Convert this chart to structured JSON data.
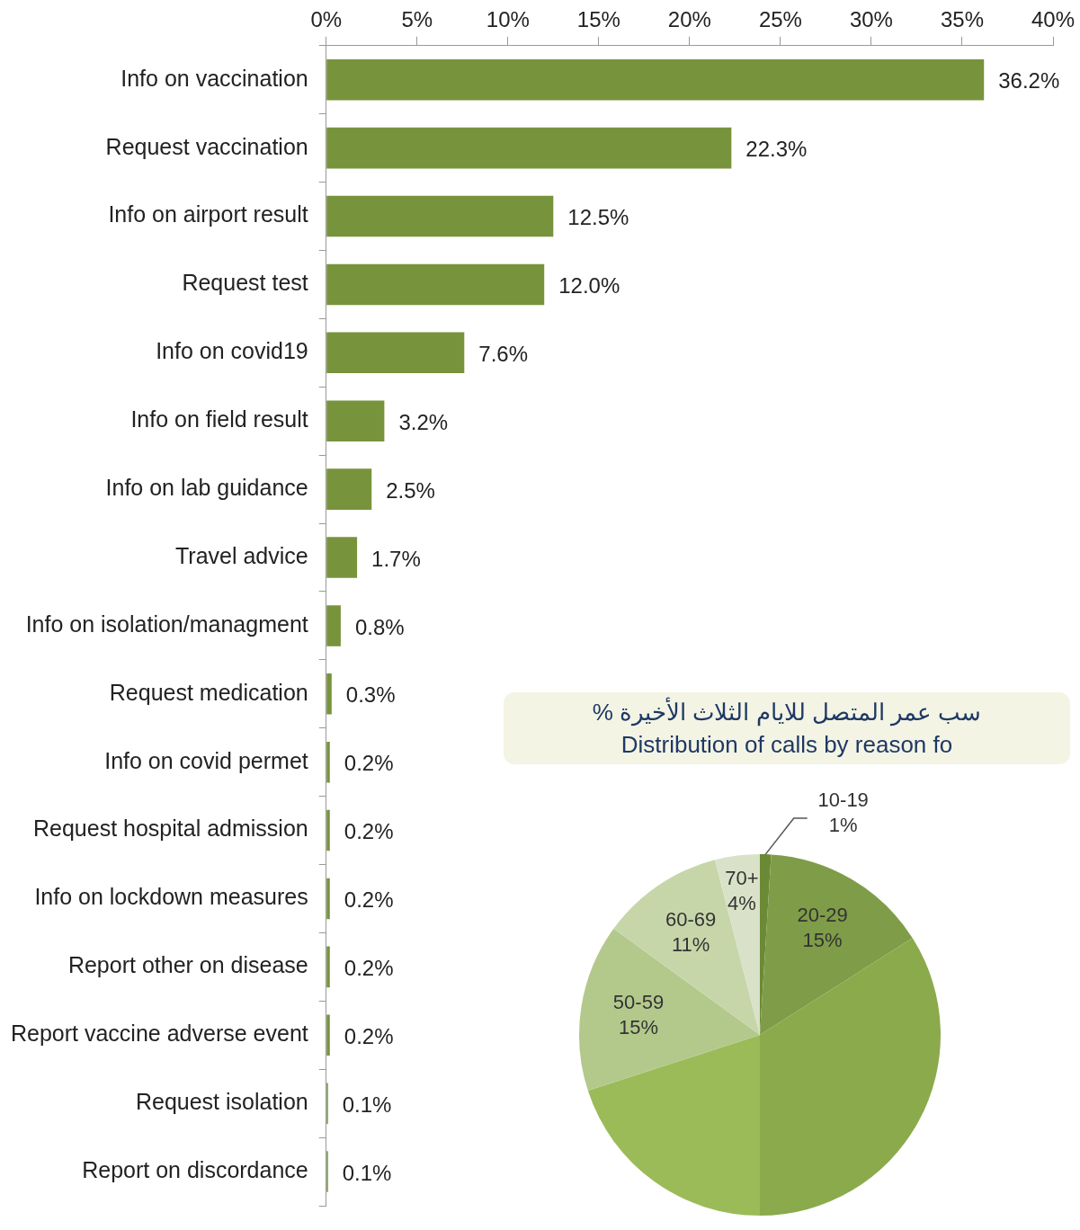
{
  "chart_data": [
    {
      "type": "bar",
      "orientation": "horizontal",
      "categories": [
        "Info on vaccination",
        "Request vaccination",
        "Info on airport result",
        "Request test",
        "Info on covid19",
        "Info on field result",
        "Info on lab guidance",
        "Travel advice",
        "Info on isolation/managment",
        "Request medication",
        "Info on covid permet",
        "Request hospital admission",
        "Info on lockdown measures",
        "Report other on disease",
        "Report vaccine adverse event",
        "Request isolation",
        "Report on discordance"
      ],
      "values": [
        36.2,
        22.3,
        12.5,
        12.0,
        7.6,
        3.2,
        2.5,
        1.7,
        0.8,
        0.3,
        0.2,
        0.2,
        0.2,
        0.2,
        0.2,
        0.1,
        0.1
      ],
      "value_labels": [
        "36.2%",
        "22.3%",
        "12.5%",
        "12.0%",
        "7.6%",
        "3.2%",
        "2.5%",
        "1.7%",
        "0.8%",
        "0.3%",
        "0.2%",
        "0.2%",
        "0.2%",
        "0.2%",
        "0.2%",
        "0.1%",
        "0.1%"
      ],
      "color": "#77933c",
      "xlim": [
        0,
        40
      ],
      "xticks": [
        {
          "value": 0,
          "label": "0%"
        },
        {
          "value": 5,
          "label": "5%"
        },
        {
          "value": 10,
          "label": "10%"
        },
        {
          "value": 15,
          "label": "15%"
        },
        {
          "value": 20,
          "label": "20%"
        },
        {
          "value": 25,
          "label": "25%"
        },
        {
          "value": 30,
          "label": "30%"
        },
        {
          "value": 35,
          "label": "35%"
        },
        {
          "value": 40,
          "label": "40%"
        }
      ],
      "grid": false,
      "legend": false
    },
    {
      "type": "pie",
      "title": "سب عمر المتصل للايام الثلاث الأخيرة %",
      "subtitle": "Distribution of calls by reason fo",
      "categories": [
        "10-19",
        "20-29",
        null,
        null,
        "50-59",
        "60-69",
        "70+"
      ],
      "values": [
        1,
        15,
        34,
        20,
        15,
        11,
        4
      ],
      "value_labels": [
        "1%",
        "15%",
        null,
        null,
        "15%",
        "11%",
        "4%"
      ],
      "colors": [
        "#6b8a35",
        "#7f9c48",
        "#8aaa4c",
        "#9bbb59",
        "#b3c98c",
        "#c6d6a9",
        "#d9e2c8"
      ],
      "legend": false
    }
  ]
}
